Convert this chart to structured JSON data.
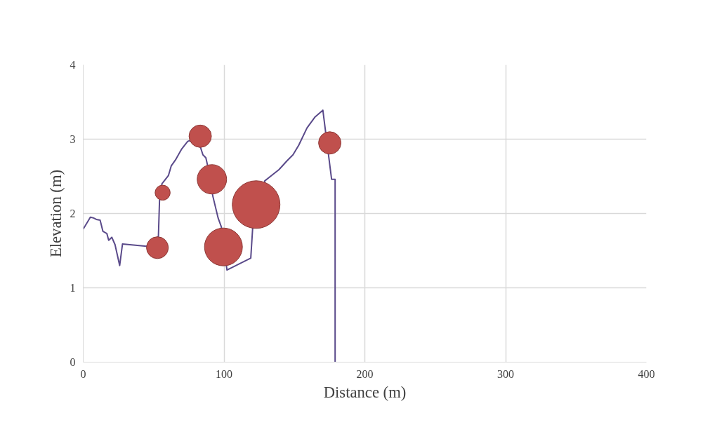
{
  "chart_data": {
    "type": "bubble",
    "xlabel": "Distance (m)",
    "ylabel": "Elevation (m)",
    "xlim": [
      0,
      400
    ],
    "xticks": [
      0,
      100,
      200,
      300,
      400
    ],
    "ylim": [
      0,
      4
    ],
    "yticks": [
      0,
      1,
      2,
      3,
      4
    ],
    "grid": true,
    "series": [
      {
        "type": "line",
        "color": "#5a4a8a",
        "marker": "none",
        "line_style": "solid",
        "x": [
          0,
          5.1,
          7.3,
          9.3,
          12,
          14,
          16.8,
          18.1,
          20.3,
          22.6,
          25.9,
          27.9,
          45,
          53.4,
          54.2,
          55.9,
          60.5,
          62.5,
          65.5,
          70,
          74.2,
          75.5,
          83.3,
          85,
          87.1,
          88.3,
          92.1,
          95.8,
          98.1,
          102.1,
          119,
          120.3,
          129,
          139,
          144.8,
          149,
          153.1,
          158.9,
          164.7,
          170.2,
          176.4,
          178.9,
          178.9
        ],
        "values": [
          1.79,
          1.95,
          1.94,
          1.92,
          1.91,
          1.76,
          1.73,
          1.64,
          1.68,
          1.58,
          1.3,
          1.59,
          1.56,
          1.69,
          2.18,
          2.4,
          2.51,
          2.64,
          2.72,
          2.87,
          2.97,
          2.98,
          2.89,
          2.79,
          2.75,
          2.65,
          2.23,
          1.94,
          1.82,
          1.24,
          1.4,
          1.79,
          2.44,
          2.59,
          2.71,
          2.79,
          2.92,
          3.15,
          3.3,
          3.39,
          2.46,
          2.46,
          0
        ]
      },
      {
        "color": "#c0504d",
        "x": [
          52.7,
          56.4,
          83.1,
          91.4,
          99.6,
          122.8,
          175.1
        ],
        "values": [
          1.54,
          2.28,
          3.04,
          2.46,
          1.55,
          2.12,
          2.95
        ],
        "sizes": [
          0.21,
          0.1,
          0.22,
          0.38,
          0.63,
          1,
          0.22
        ]
      }
    ]
  }
}
